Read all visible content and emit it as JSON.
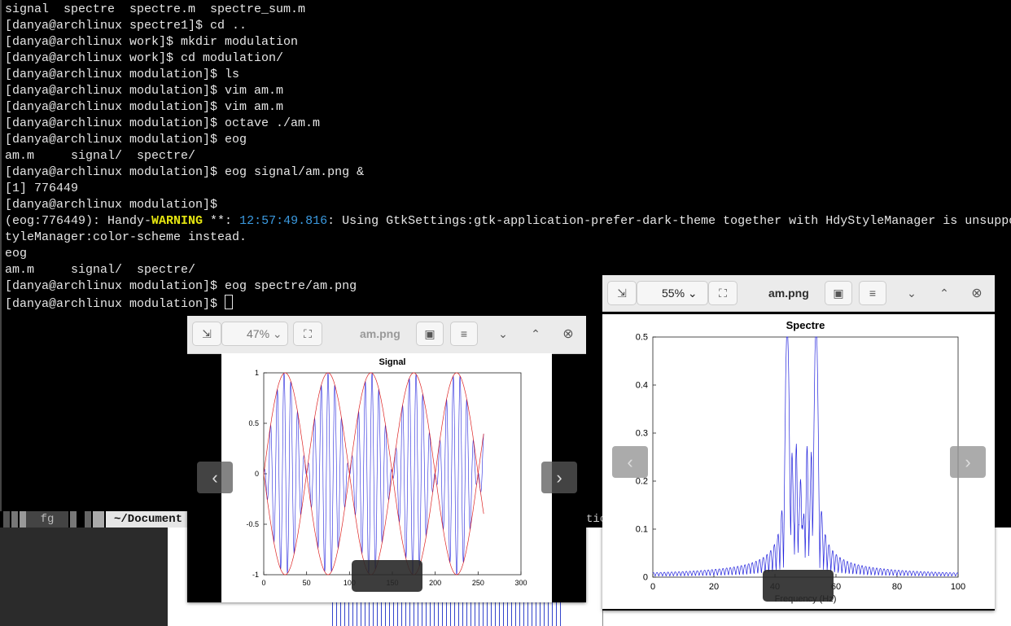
{
  "terminal": {
    "lines": [
      "signal  spectre  spectre.m  spectre_sum.m",
      "[danya@archlinux spectre1]$ cd ..",
      "[danya@archlinux work]$ mkdir modulation",
      "[danya@archlinux work]$ cd modulation/",
      "[danya@archlinux modulation]$ ls",
      "[danya@archlinux modulation]$ vim am.m",
      "[danya@archlinux modulation]$ vim am.m",
      "[danya@archlinux modulation]$ octave ./am.m",
      "[danya@archlinux modulation]$ eog",
      "am.m     signal/  spectre/",
      "[danya@archlinux modulation]$ eog signal/am.png &",
      "[1] 776449",
      "[danya@archlinux modulation]$"
    ],
    "warning": [
      "(eog:776449): Handy-",
      "WARNING",
      " **: ",
      "12:57:49.816",
      ": Using GtkSettings:gtk-application-prefer-dark-theme together with HdyStyleManager is unsuppo"
    ],
    "after": [
      "tyleManager:color-scheme instead.",
      "eog",
      "am.m     signal/  spectre/",
      "[danya@archlinux modulation]$ eog spectre/am.png",
      "[danya@archlinux modulation]$ "
    ]
  },
  "statusbar": {
    "job": "fg",
    "path": "~/Document",
    "tail": "tic"
  },
  "viewers": [
    {
      "zoom": "47%",
      "title": "am.png",
      "plot": {
        "title": "Signal",
        "xlim": [
          0,
          300
        ],
        "xticks": [
          0,
          50,
          100,
          150,
          200,
          250,
          300
        ],
        "ylim": [
          -1,
          1
        ],
        "yticks": [
          -1,
          -0.5,
          0,
          0.5,
          1
        ]
      }
    },
    {
      "zoom": "55%",
      "title": "am.png",
      "plot": {
        "title": "Spectre",
        "xlabel": "Frequency (Hz)",
        "xlim": [
          0,
          100
        ],
        "xticks": [
          0,
          20,
          40,
          60,
          80,
          100
        ],
        "ylim": [
          0,
          0.5
        ],
        "yticks": [
          0,
          0.1,
          0.2,
          0.3,
          0.4,
          0.5
        ]
      }
    }
  ]
}
